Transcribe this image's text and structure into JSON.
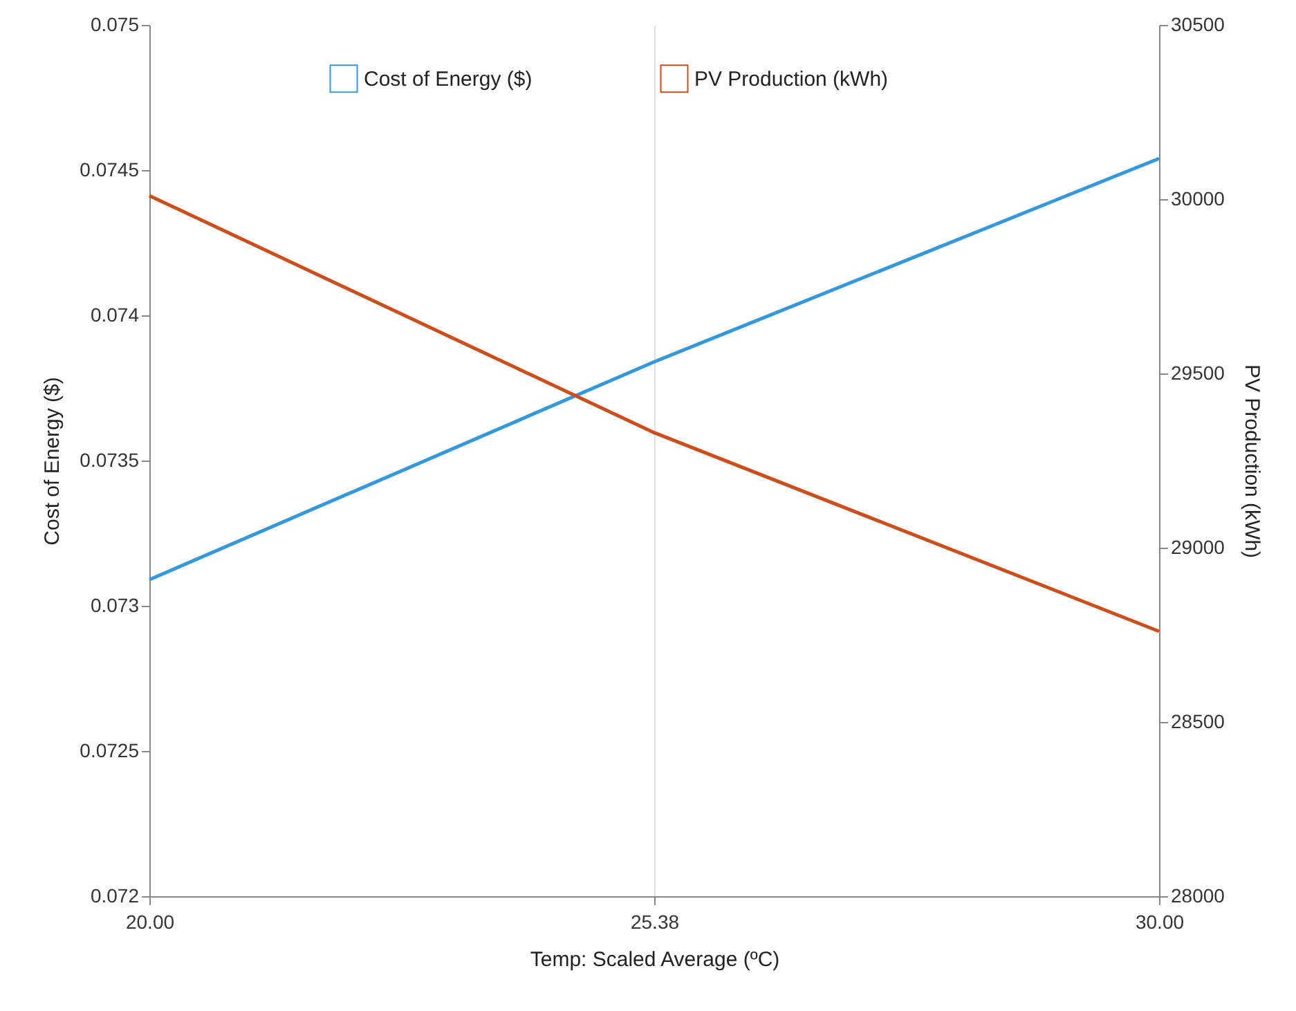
{
  "chart_data": {
    "type": "line",
    "xlabel": "Temp: Scaled Average (ºC)",
    "ylabel": "Cost of Energy ($)",
    "y2label": "PV Production (kWh)",
    "categories": [
      "20.00",
      "25.38",
      "30.00"
    ],
    "series": [
      {
        "name": "Cost of Energy ($)",
        "color": "#3498db",
        "values": [
          0.07309,
          0.07384,
          0.07454
        ]
      },
      {
        "name": "PV Production (kWh)",
        "color": "#cc4e1c",
        "values": [
          30010,
          29330,
          28760
        ],
        "axis": "y2"
      }
    ],
    "ylim": [
      0.072,
      0.075
    ],
    "yticks": [
      0.072,
      0.0725,
      0.073,
      0.0735,
      0.074,
      0.0745,
      0.075
    ],
    "y2lim": [
      28000,
      30500
    ],
    "y2ticks": [
      28000,
      28500,
      29000,
      29500,
      30000,
      30500
    ],
    "grid": "x",
    "legend": "top",
    "marker": "none",
    "line_style": "solid"
  }
}
